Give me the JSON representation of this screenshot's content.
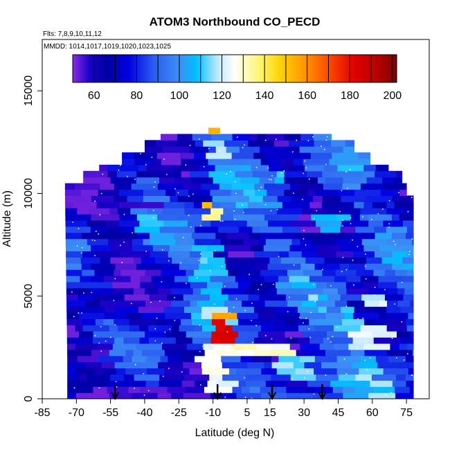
{
  "chart_data": {
    "type": "heatmap",
    "title": "ATOM3 Northbound CO_PECD",
    "subtitle_lines": [
      "Flts: 7,8,9,10,11,12",
      "MMDD: 1014,1017,1019,1020,1023,1025"
    ],
    "xlabel": "Latitude (deg N)",
    "ylabel": "Altitude (m)",
    "xlim": [
      -85,
      85
    ],
    "ylim": [
      0,
      17500
    ],
    "x_ticks": [
      -85,
      -70,
      -55,
      -40,
      -25,
      -10,
      5,
      15,
      30,
      45,
      60,
      75
    ],
    "y_ticks": [
      0,
      5000,
      10000,
      15000
    ],
    "y_tick_labels": [
      "0",
      "5000",
      "10000",
      "15000"
    ],
    "colorbar": {
      "range": [
        50,
        202
      ],
      "ticks": [
        60,
        80,
        100,
        120,
        140,
        160,
        180,
        200
      ],
      "stops": [
        {
          "v": 50,
          "c": "#8a2be2"
        },
        {
          "v": 58,
          "c": "#1a00c8"
        },
        {
          "v": 66,
          "c": "#0000a0"
        },
        {
          "v": 76,
          "c": "#0000e0"
        },
        {
          "v": 88,
          "c": "#2a5cf0"
        },
        {
          "v": 100,
          "c": "#3d8ff5"
        },
        {
          "v": 108,
          "c": "#00bfff"
        },
        {
          "v": 118,
          "c": "#bfe8ff"
        },
        {
          "v": 126,
          "c": "#ffffff"
        },
        {
          "v": 138,
          "c": "#fff56b"
        },
        {
          "v": 148,
          "c": "#ffd000"
        },
        {
          "v": 158,
          "c": "#ff9a00"
        },
        {
          "v": 170,
          "c": "#ff4a00"
        },
        {
          "v": 182,
          "c": "#e00000"
        },
        {
          "v": 194,
          "c": "#b00000"
        },
        {
          "v": 202,
          "c": "#800000"
        }
      ]
    },
    "arrows_lat": [
      -53,
      -8,
      16,
      38
    ],
    "regions": [
      {
        "lat": [
          -55,
          -25
        ],
        "alt": [
          0,
          700
        ],
        "v": 55
      },
      {
        "lat": [
          -66,
          -56
        ],
        "alt": [
          1600,
          2600
        ],
        "v": 58
      },
      {
        "lat": [
          -62,
          -54
        ],
        "alt": [
          4300,
          4900
        ],
        "v": 56
      },
      {
        "lat": [
          -48,
          -36
        ],
        "alt": [
          9200,
          9700
        ],
        "v": 55
      },
      {
        "lat": [
          -38,
          -28
        ],
        "alt": [
          12100,
          12600
        ],
        "v": 62
      },
      {
        "lat": [
          -13,
          -3
        ],
        "alt": [
          400,
          2600
        ],
        "v": 125
      },
      {
        "lat": [
          -9,
          -2
        ],
        "alt": [
          4000,
          4900
        ],
        "v": 158
      },
      {
        "lat": [
          -10,
          -2
        ],
        "alt": [
          2600,
          4000
        ],
        "v": 182
      },
      {
        "lat": [
          -11,
          -1
        ],
        "alt": [
          2100,
          2700
        ],
        "v": 142
      },
      {
        "lat": [
          -3,
          24
        ],
        "alt": [
          2100,
          2600
        ],
        "v": 128
      },
      {
        "lat": [
          -14,
          -10
        ],
        "alt": [
          9200,
          10000
        ],
        "v": 152
      },
      {
        "lat": [
          -13,
          -8
        ],
        "alt": [
          8600,
          9200
        ],
        "v": 135
      },
      {
        "lat": [
          -17,
          -7
        ],
        "alt": [
          5600,
          7500
        ],
        "v": 112
      },
      {
        "lat": [
          -10,
          -4
        ],
        "alt": [
          11800,
          12700
        ],
        "v": 118
      },
      {
        "lat": [
          -10,
          -6
        ],
        "alt": [
          13000,
          13400
        ],
        "v": 152
      },
      {
        "lat": [
          20,
          33
        ],
        "alt": [
          1000,
          2000
        ],
        "v": 115
      },
      {
        "lat": [
          52,
          66
        ],
        "alt": [
          2300,
          3600
        ],
        "v": 122
      },
      {
        "lat": [
          45,
          55
        ],
        "alt": [
          3400,
          4500
        ],
        "v": 110
      },
      {
        "lat": [
          58,
          68
        ],
        "alt": [
          4600,
          5000
        ],
        "v": 120
      },
      {
        "lat": [
          36,
          48
        ],
        "alt": [
          8000,
          9000
        ],
        "v": 106
      },
      {
        "lat": [
          15,
          20
        ],
        "alt": [
          10400,
          11000
        ],
        "v": 108
      }
    ]
  }
}
